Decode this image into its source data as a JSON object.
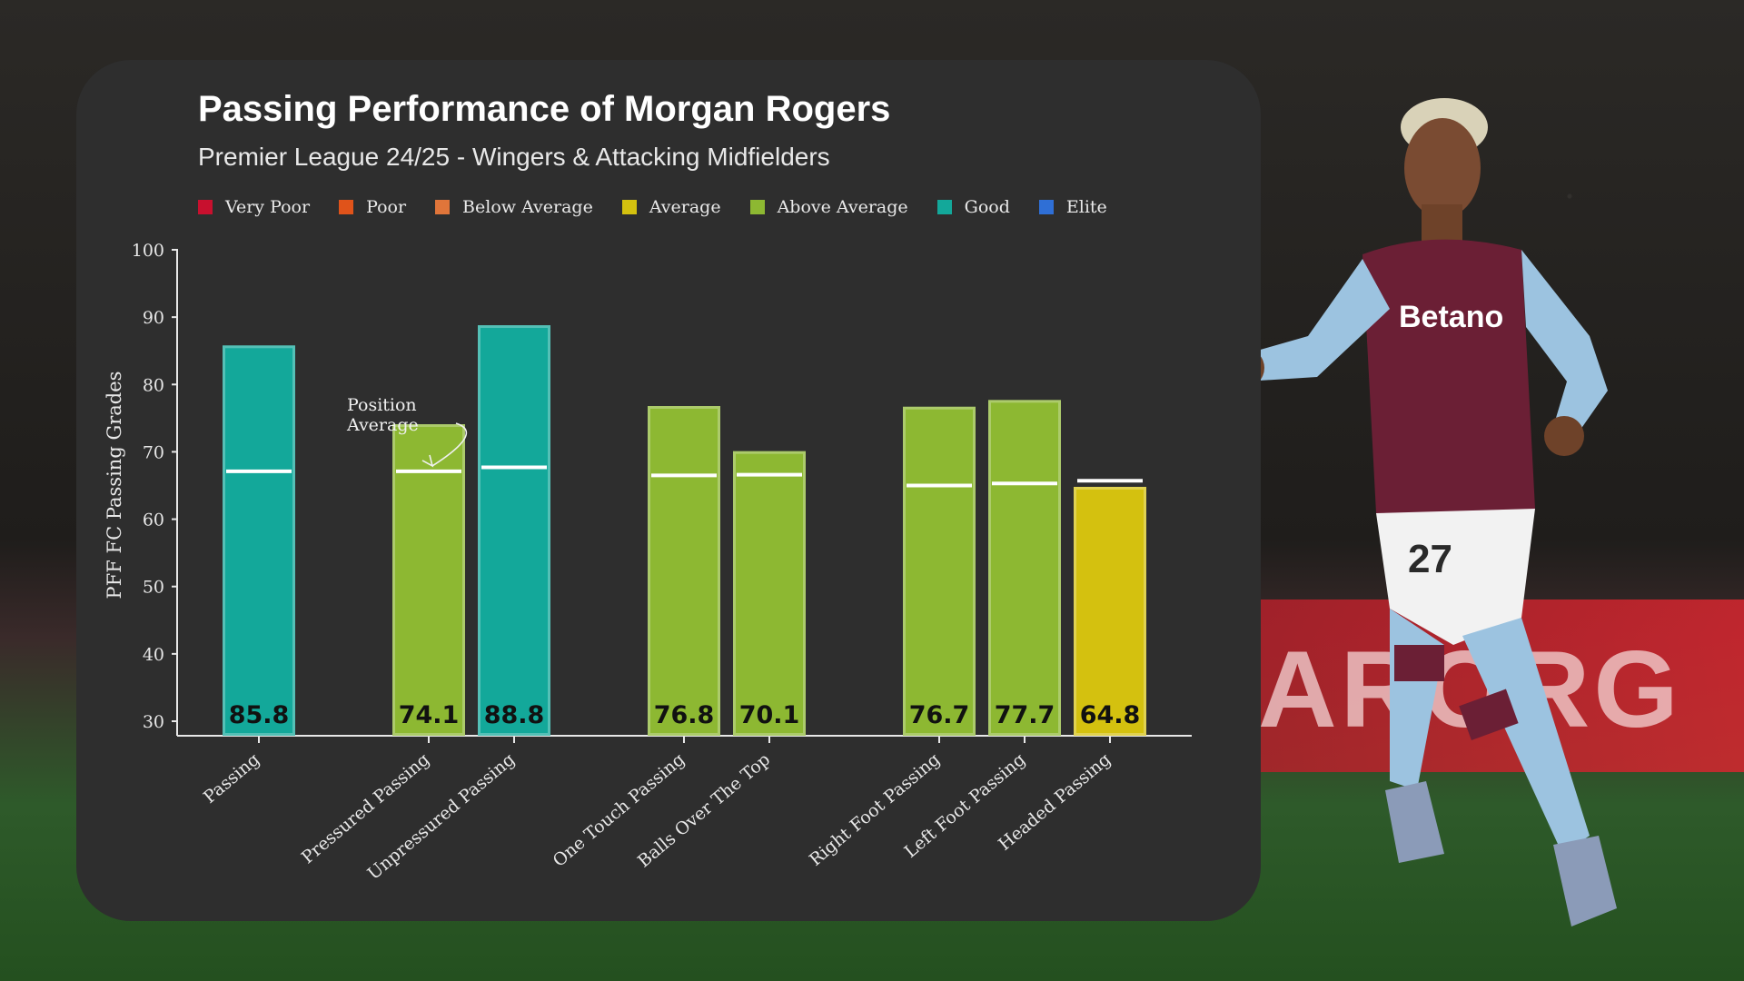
{
  "background": {
    "board_text": "ARORG"
  },
  "chart_data": {
    "type": "bar",
    "title": "Passing Performance of Morgan Rogers",
    "subtitle": "Premier League 24/25 - Wingers &  Attacking Midfielders",
    "ylabel": "PFF FC Passing Grades",
    "xlabel": "",
    "ylim": [
      30,
      100
    ],
    "yticks": [
      30,
      40,
      50,
      60,
      70,
      80,
      90,
      100
    ],
    "legend": [
      {
        "label": "Very Poor",
        "color": "#c8102e"
      },
      {
        "label": "Poor",
        "color": "#e0531a"
      },
      {
        "label": "Below Average",
        "color": "#e0753a"
      },
      {
        "label": "Average",
        "color": "#d4c10f"
      },
      {
        "label": "Above Average",
        "color": "#8db832"
      },
      {
        "label": "Good",
        "color": "#13a89a"
      },
      {
        "label": "Elite",
        "color": "#2f6fd6"
      }
    ],
    "legend_placement": "top",
    "grid": false,
    "categories": [
      "Passing",
      "Pressured Passing",
      "Unpressured Passing",
      "One Touch Passing",
      "Balls Over The Top",
      "Right Foot Passing",
      "Left Foot Passing",
      "Headed Passing"
    ],
    "groups": [
      [
        0
      ],
      [
        1,
        2
      ],
      [
        3,
        4
      ],
      [
        5,
        6,
        7
      ]
    ],
    "values": [
      85.8,
      74.1,
      88.8,
      76.8,
      70.1,
      76.7,
      77.7,
      64.8
    ],
    "value_labels": [
      "85.8",
      "74.1",
      "88.8",
      "76.8",
      "70.1",
      "76.7",
      "77.7",
      "64.8"
    ],
    "ratings": [
      "Good",
      "Above Average",
      "Good",
      "Above Average",
      "Above Average",
      "Above Average",
      "Above Average",
      "Average"
    ],
    "position_average": [
      67.1,
      67.1,
      67.7,
      66.5,
      66.6,
      65.0,
      65.3,
      65.7
    ],
    "annotation": {
      "line1": "Position",
      "line2": "Average"
    }
  }
}
